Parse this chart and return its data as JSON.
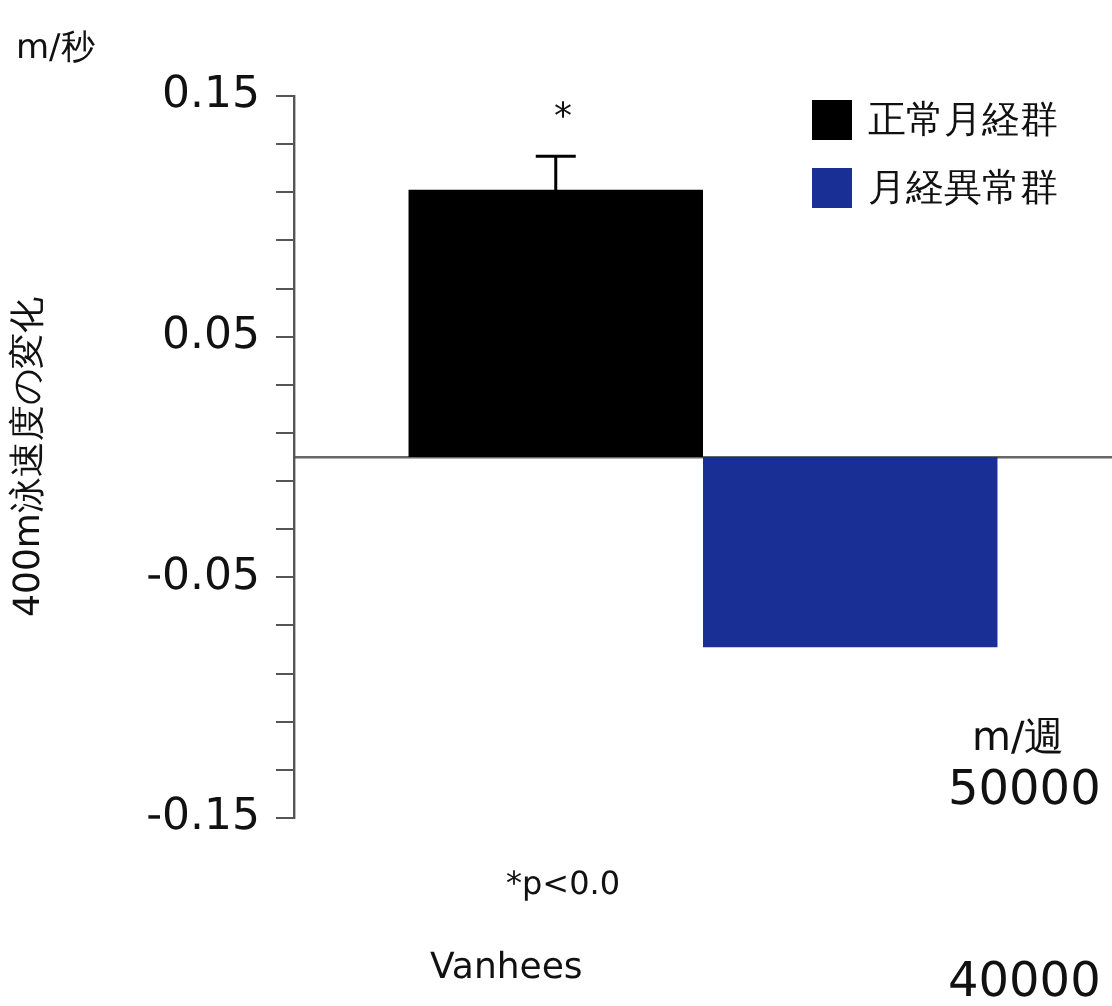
{
  "chart_data": {
    "type": "bar",
    "ylabel": "400m泳速度の変化",
    "categories": [
      null
    ],
    "series": [
      {
        "name": "正常月経群",
        "color": "#000000",
        "values": [
          0.111
        ],
        "errors": [
          0.014
        ]
      },
      {
        "name": "月経異常群",
        "color": "#1a2f96",
        "values": [
          -0.079
        ]
      }
    ],
    "ylim": [
      -0.15,
      0.15
    ],
    "yticks": [
      -0.15,
      {
        "value": -0.13,
        "label": null
      },
      {
        "value": -0.11,
        "label": null
      },
      {
        "value": -0.09,
        "label": null
      },
      {
        "value": -0.07,
        "label": null
      },
      -0.05,
      {
        "value": -0.03,
        "label": null
      },
      {
        "value": -0.01,
        "label": null
      },
      {
        "value": 0.01,
        "label": null
      },
      {
        "value": 0.03,
        "label": null
      },
      0.05,
      {
        "value": 0.07,
        "label": null
      },
      {
        "value": 0.09,
        "label": null
      },
      {
        "value": 0.11,
        "label": null
      },
      {
        "value": 0.13,
        "label": null
      },
      0.15
    ],
    "grid": false,
    "legend": "top right",
    "tick_labels": "y",
    "annotations": [
      "m/秒",
      "*",
      "*p<0.0",
      "Vanhees",
      "m/週",
      "50000",
      "40000"
    ]
  }
}
